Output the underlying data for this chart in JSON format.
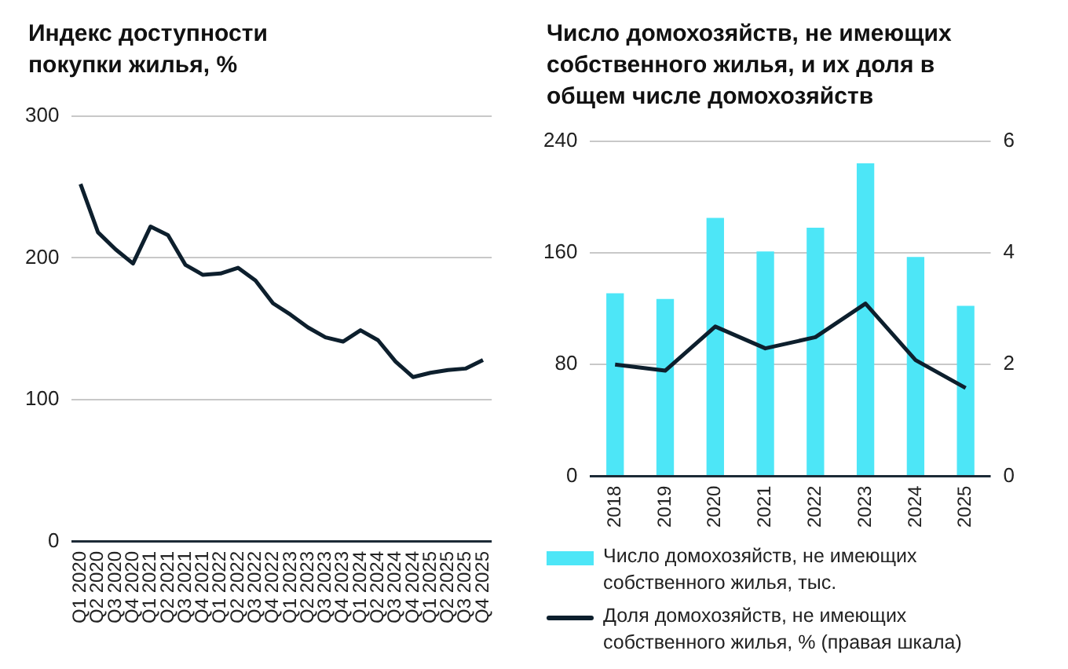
{
  "chart_data": [
    {
      "type": "line",
      "title": "Индекс доступности покупки жилья, %",
      "categories": [
        "Q1 2020",
        "Q2 2020",
        "Q3 2020",
        "Q4 2020",
        "Q1 2021",
        "Q2 2021",
        "Q3 2021",
        "Q4 2021",
        "Q1 2022",
        "Q2 2022",
        "Q3 2022",
        "Q4 2022",
        "Q1 2023",
        "Q2 2023",
        "Q3 2023",
        "Q4 2023",
        "Q1 2024",
        "Q2 2024",
        "Q3 2024",
        "Q4 2024",
        "Q1 2025",
        "Q2 2025",
        "Q3 2025",
        "Q4 2025"
      ],
      "series": [
        {
          "color": "#0d1f2d",
          "values": [
            252,
            218,
            206,
            196,
            222,
            216,
            195,
            188,
            189,
            193,
            184,
            168,
            160,
            151,
            144,
            141,
            149,
            142,
            127,
            116,
            119,
            121,
            122,
            128
          ]
        }
      ],
      "ylim": [
        0,
        300
      ],
      "yticks": [
        0,
        100,
        200,
        300
      ],
      "grid": "y",
      "marker": "none"
    },
    {
      "type": "bar",
      "title": "Число домохозяйств, не имеющих собственного жилья, и их доля в общем числе домохозяйств",
      "categories": [
        "2018",
        "2019",
        "2020",
        "2021",
        "2022",
        "2023",
        "2024",
        "2025"
      ],
      "series": [
        {
          "name": "Число домохозяйств, не имеющих собственного жилья, тыс.",
          "color": "#4de6f7",
          "values": [
            131,
            127,
            185,
            161,
            178,
            224,
            157,
            122
          ]
        },
        {
          "name": "Доля домохозяйств, не имеющих собственного жилья, % (правая шкала)",
          "type": "line",
          "axis": "y2",
          "color": "#0d1f2d",
          "values": [
            2.0,
            1.89,
            2.68,
            2.29,
            2.49,
            3.09,
            2.08,
            1.58
          ]
        }
      ],
      "ylim": [
        0,
        240
      ],
      "yticks": [
        0,
        80,
        160,
        240
      ],
      "y2lim": [
        0,
        6
      ],
      "y2ticks": [
        0,
        2,
        4,
        6
      ],
      "grid": "y",
      "legend": "bottom",
      "marker": "none"
    }
  ]
}
